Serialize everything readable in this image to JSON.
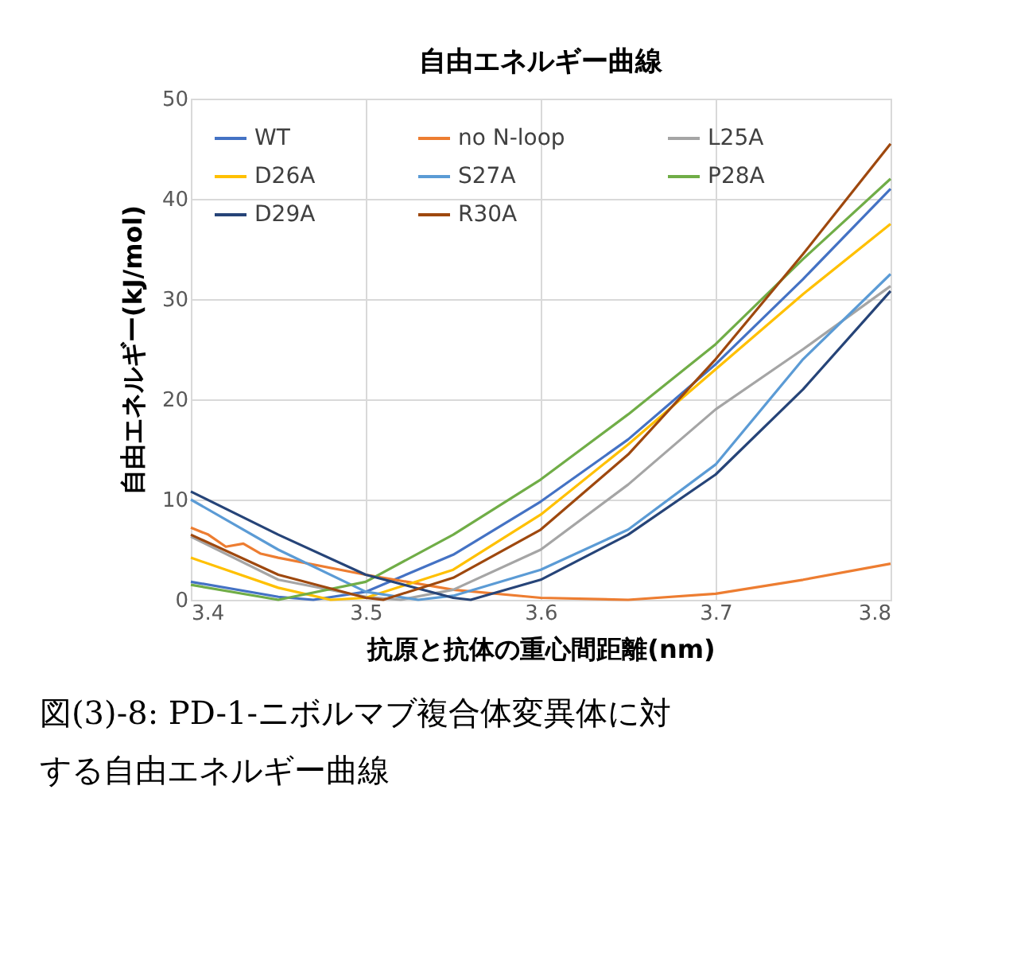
{
  "chart_data": {
    "type": "line",
    "title": "自由エネルギー曲線",
    "xlabel": "抗原と抗体の重心間距離(nm)",
    "ylabel": "自由エネルギー(kJ/mol)",
    "xlim": [
      3.4,
      3.8
    ],
    "xticks": [
      3.4,
      3.5,
      3.6,
      3.7,
      3.8
    ],
    "ylim": [
      0,
      50
    ],
    "yticks": [
      0,
      10,
      20,
      30,
      40,
      50
    ],
    "grid": true,
    "legend": "top",
    "marker": "none",
    "line_style": "solid",
    "annotations": [
      "図(3)-8: PD-1-ニボルマブ複合体変異体に対する自由エネルギー曲線"
    ],
    "series": [
      {
        "name": "WT",
        "color": "#4472c4",
        "x": [
          3.4,
          3.45,
          3.47,
          3.5,
          3.55,
          3.6,
          3.65,
          3.7,
          3.75,
          3.8
        ],
        "values": [
          1.8,
          0.3,
          0,
          0.8,
          4.5,
          9.8,
          16,
          23.5,
          32,
          41
        ]
      },
      {
        "name": "no N-loop",
        "color": "#ed7d31",
        "x": [
          3.4,
          3.41,
          3.42,
          3.43,
          3.44,
          3.45,
          3.5,
          3.55,
          3.6,
          3.65,
          3.7,
          3.75,
          3.8
        ],
        "values": [
          7.2,
          6.5,
          5.3,
          5.6,
          4.6,
          4.2,
          2.5,
          1.0,
          0.2,
          0,
          0.6,
          2,
          3.6
        ]
      },
      {
        "name": "L25A",
        "color": "#a5a5a5",
        "x": [
          3.4,
          3.45,
          3.5,
          3.52,
          3.55,
          3.6,
          3.65,
          3.7,
          3.75,
          3.8
        ],
        "values": [
          6.3,
          2,
          0.3,
          0,
          1,
          5,
          11.5,
          19,
          25,
          31.3
        ]
      },
      {
        "name": "D26A",
        "color": "#ffc000",
        "x": [
          3.4,
          3.45,
          3.48,
          3.5,
          3.55,
          3.6,
          3.65,
          3.7,
          3.75,
          3.8
        ],
        "values": [
          4.2,
          1.2,
          0,
          0.2,
          3,
          8.5,
          15.5,
          23,
          30.5,
          37.5
        ]
      },
      {
        "name": "S27A",
        "color": "#5b9bd5",
        "x": [
          3.4,
          3.45,
          3.5,
          3.53,
          3.55,
          3.6,
          3.65,
          3.7,
          3.75,
          3.8
        ],
        "values": [
          10,
          5,
          0.8,
          0,
          0.4,
          3,
          7,
          13.5,
          24,
          32.5
        ]
      },
      {
        "name": "P28A",
        "color": "#70ad47",
        "x": [
          3.4,
          3.45,
          3.5,
          3.55,
          3.6,
          3.65,
          3.7,
          3.75,
          3.8
        ],
        "values": [
          1.5,
          0,
          1.8,
          6.5,
          12,
          18.5,
          25.5,
          34,
          42
        ]
      },
      {
        "name": "D29A",
        "color": "#264478",
        "x": [
          3.4,
          3.45,
          3.5,
          3.55,
          3.56,
          3.6,
          3.65,
          3.7,
          3.75,
          3.8
        ],
        "values": [
          10.8,
          6.5,
          2.5,
          0.2,
          0,
          2,
          6.5,
          12.5,
          21,
          30.8
        ]
      },
      {
        "name": "R30A",
        "color": "#9e480e",
        "x": [
          3.4,
          3.45,
          3.5,
          3.51,
          3.55,
          3.6,
          3.65,
          3.7,
          3.75,
          3.8
        ],
        "values": [
          6.5,
          2.5,
          0.2,
          0,
          2.2,
          7,
          14.5,
          24,
          34.5,
          45.5
        ]
      }
    ]
  }
}
